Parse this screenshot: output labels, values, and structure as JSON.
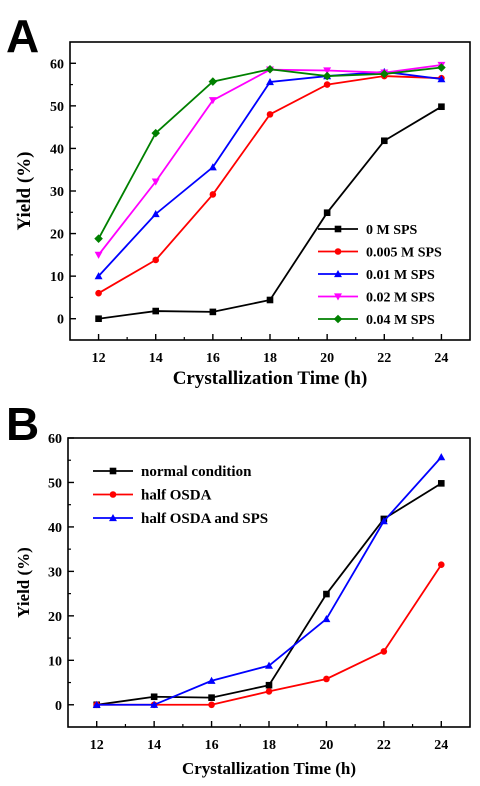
{
  "chart_data": [
    {
      "panel": "A",
      "type": "line",
      "xlabel": "Crystallization Time (h)",
      "ylabel": "Yield (%)",
      "x": [
        12,
        14,
        16,
        18,
        20,
        22,
        24
      ],
      "xlim": [
        11,
        25
      ],
      "ylim": [
        -5,
        65
      ],
      "xticks": [
        12,
        14,
        16,
        18,
        20,
        22,
        24
      ],
      "yticks": [
        0,
        10,
        20,
        30,
        40,
        50,
        60
      ],
      "grid": false,
      "legend": "bottom-right",
      "series": [
        {
          "name": "0 M SPS",
          "color": "#000000",
          "marker": "square",
          "values": [
            0,
            1.8,
            1.6,
            4.4,
            24.9,
            41.8,
            49.8
          ]
        },
        {
          "name": "0.005 M SPS",
          "color": "#ff0000",
          "marker": "circle",
          "values": [
            6.0,
            13.8,
            29.2,
            48.0,
            55.0,
            57.0,
            56.5
          ]
        },
        {
          "name": "0.01 M SPS",
          "color": "#0000ff",
          "marker": "triangle-up",
          "values": [
            10.0,
            24.6,
            35.6,
            55.6,
            57.0,
            58.0,
            56.3
          ]
        },
        {
          "name": "0.02 M SPS",
          "color": "#ff00ff",
          "marker": "triangle-down",
          "values": [
            15.0,
            32.2,
            51.3,
            58.5,
            58.3,
            57.8,
            59.6
          ]
        },
        {
          "name": "0.04 M SPS",
          "color": "#008000",
          "marker": "diamond",
          "values": [
            18.8,
            43.6,
            55.7,
            58.6,
            57.0,
            57.5,
            59.0
          ]
        }
      ]
    },
    {
      "panel": "B",
      "type": "line",
      "xlabel": "Crystallization Time (h)",
      "ylabel": "Yield (%)",
      "x": [
        12,
        14,
        16,
        18,
        20,
        22,
        24
      ],
      "xlim": [
        11,
        25
      ],
      "ylim": [
        -5,
        60
      ],
      "xticks": [
        12,
        14,
        16,
        18,
        20,
        22,
        24
      ],
      "yticks": [
        0,
        10,
        20,
        30,
        40,
        50,
        60
      ],
      "grid": false,
      "legend": "top-left",
      "series": [
        {
          "name": "normal condition",
          "color": "#000000",
          "marker": "square",
          "values": [
            0,
            1.8,
            1.6,
            4.4,
            24.9,
            41.8,
            49.8
          ]
        },
        {
          "name": "half OSDA",
          "color": "#ff0000",
          "marker": "circle",
          "values": [
            0,
            0,
            0,
            3.0,
            5.8,
            12.0,
            31.5
          ]
        },
        {
          "name": "half OSDA and SPS",
          "color": "#0000ff",
          "marker": "triangle-up",
          "values": [
            0,
            0,
            5.4,
            8.8,
            19.3,
            41.3,
            55.7
          ]
        }
      ]
    }
  ]
}
